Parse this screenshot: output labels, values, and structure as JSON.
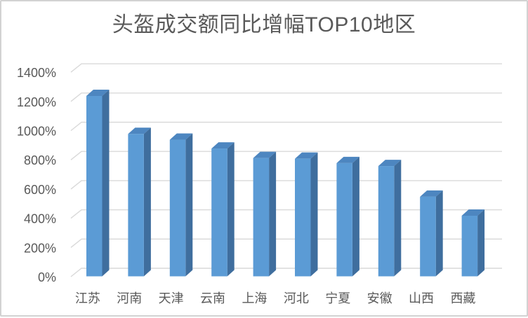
{
  "chart_data": {
    "type": "bar",
    "variant": "3d-column",
    "title": "头盔成交额同比增幅TOP10地区",
    "categories": [
      "江苏",
      "河南",
      "天津",
      "云南",
      "上海",
      "河北",
      "宁夏",
      "安徽",
      "山西",
      "西藏"
    ],
    "values": [
      1235,
      975,
      935,
      875,
      810,
      805,
      775,
      755,
      545,
      415
    ],
    "unit": "%",
    "xlabel": "",
    "ylabel": "",
    "ylim": [
      0,
      1400
    ],
    "ytick_step": 200,
    "ytick_labels": [
      "0%",
      "200%",
      "400%",
      "600%",
      "800%",
      "1000%",
      "1200%",
      "1400%"
    ],
    "grid": true,
    "legend": false,
    "colors": {
      "bar_front": "#5b9bd5",
      "bar_top": "#4d86c0",
      "bar_side": "#3f6e9e",
      "gridline": "#d9d9d9",
      "text": "#595959",
      "title_text": "#595959",
      "frame_border": "#d2d2d2",
      "background": "#ffffff"
    }
  }
}
